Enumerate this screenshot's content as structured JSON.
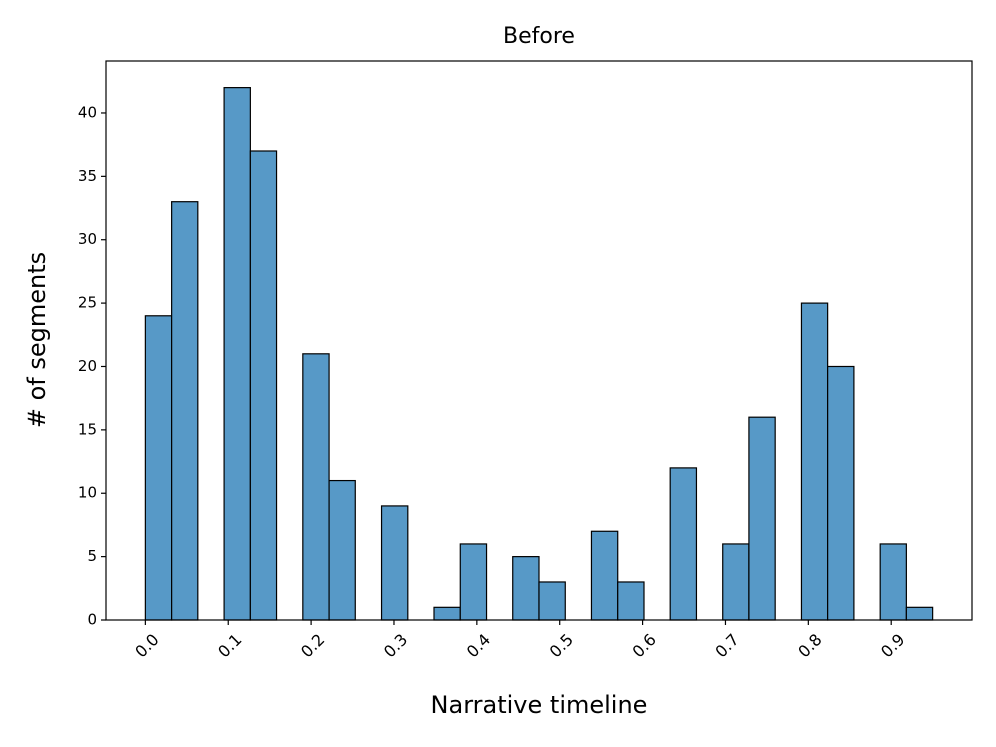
{
  "chart_data": {
    "type": "histogram",
    "title": "Before",
    "xlabel": "Narrative timeline",
    "ylabel": "# of segments",
    "bins": [
      0,
      0.0317,
      0.0633,
      0.095,
      0.1267,
      0.1583,
      0.19,
      0.2217,
      0.2533,
      0.285,
      0.3167,
      0.3483,
      0.38,
      0.4117,
      0.4433,
      0.475,
      0.5067,
      0.5383,
      0.57,
      0.6017,
      0.6333,
      0.665,
      0.6967,
      0.7283,
      0.76,
      0.7917,
      0.8233,
      0.855,
      0.8867,
      0.9183,
      0.95
    ],
    "counts": [
      24,
      33,
      0,
      42,
      37,
      0,
      21,
      11,
      0,
      9,
      0,
      1,
      6,
      0,
      5,
      3,
      0,
      7,
      3,
      0,
      12,
      0,
      6,
      16,
      0,
      25,
      20,
      0,
      6,
      1
    ],
    "color": "#5799c7",
    "edgecolor": "#000000",
    "xlim": [
      -0.0475,
      0.9975
    ],
    "ylim": [
      0,
      44.1
    ],
    "xticks": [
      {
        "value": 0,
        "label": "0.0"
      },
      0.1,
      0.2,
      0.3,
      0.4,
      0.5,
      0.6,
      0.7,
      0.8,
      0.9
    ],
    "yticks": [
      0,
      5,
      10,
      15,
      20,
      25,
      30,
      35,
      40
    ]
  }
}
